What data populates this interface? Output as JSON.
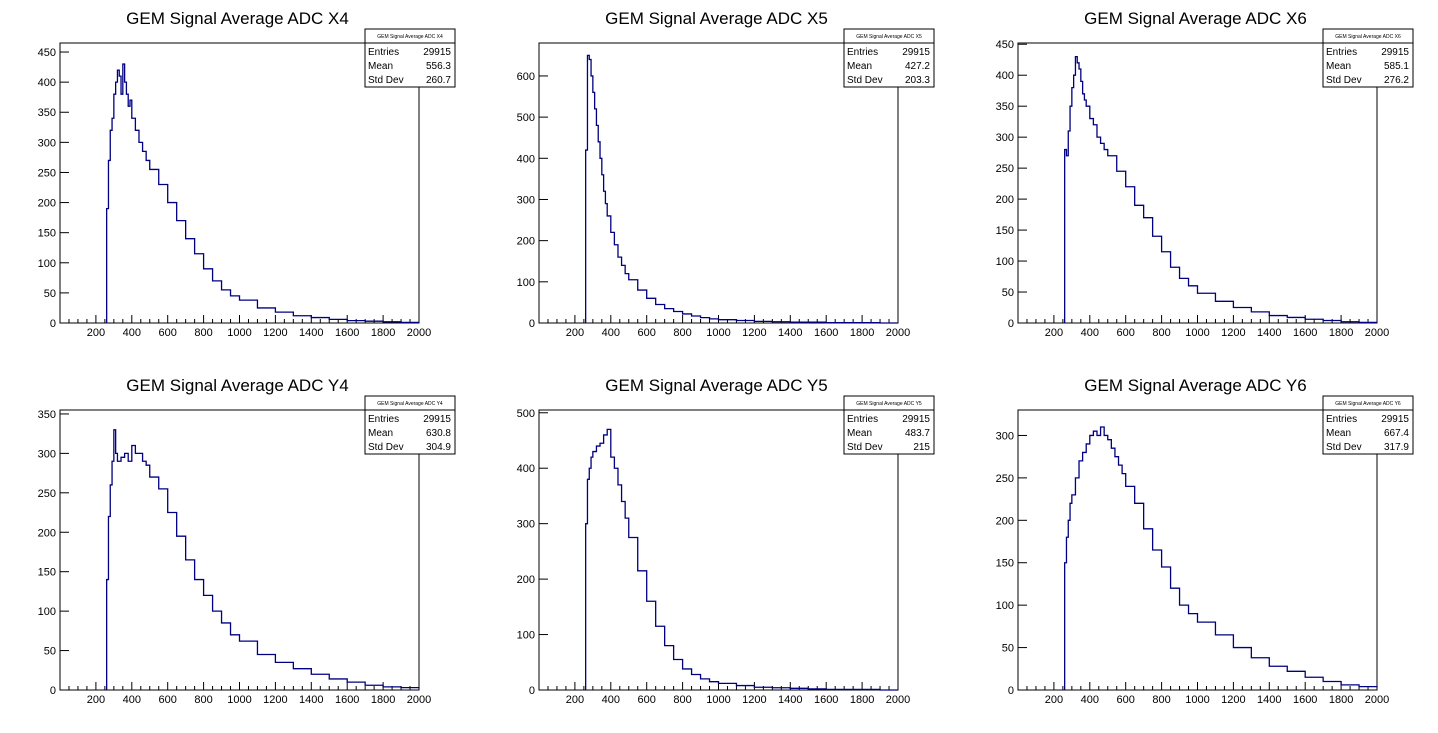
{
  "colors": {
    "histogram": "#000080",
    "axis": "#000000",
    "background": "#ffffff"
  },
  "chart_data": [
    {
      "type": "bar",
      "title": "GEM Signal Average ADC X4",
      "xlabel": "",
      "ylabel": "",
      "xlim": [
        0,
        2000
      ],
      "ylim": [
        0,
        465
      ],
      "xticks": [
        "200",
        "400",
        "600",
        "800",
        "1000",
        "1200",
        "1400",
        "1600",
        "1800",
        "2000"
      ],
      "yticks": [
        "0",
        "50",
        "100",
        "150",
        "200",
        "250",
        "300",
        "350",
        "400",
        "450"
      ],
      "stats": {
        "title": "GEM Signal Average ADC X4",
        "entries_label": "Entries",
        "entries": "29915",
        "mean_label": "Mean",
        "mean": "556.3",
        "std_label": "Std Dev",
        "std": "260.7"
      },
      "bin_width": 10,
      "x": [
        260,
        270,
        280,
        290,
        300,
        310,
        320,
        330,
        340,
        350,
        360,
        370,
        380,
        390,
        400,
        420,
        440,
        460,
        480,
        500,
        550,
        600,
        650,
        700,
        750,
        800,
        850,
        900,
        950,
        1000,
        1100,
        1200,
        1300,
        1400,
        1500,
        1600,
        1700,
        1800,
        1900,
        2000
      ],
      "values": [
        190,
        270,
        320,
        340,
        380,
        400,
        420,
        410,
        380,
        430,
        400,
        380,
        360,
        370,
        340,
        320,
        300,
        285,
        270,
        255,
        230,
        200,
        170,
        140,
        115,
        90,
        70,
        55,
        45,
        38,
        25,
        18,
        12,
        9,
        6,
        4,
        3,
        2,
        1,
        1
      ]
    },
    {
      "type": "bar",
      "title": "GEM Signal Average ADC X5",
      "xlabel": "",
      "ylabel": "",
      "xlim": [
        0,
        2000
      ],
      "ylim": [
        0,
        680
      ],
      "xticks": [
        "200",
        "400",
        "600",
        "800",
        "1000",
        "1200",
        "1400",
        "1600",
        "1800",
        "2000"
      ],
      "yticks": [
        "0",
        "100",
        "200",
        "300",
        "400",
        "500",
        "600"
      ],
      "stats": {
        "title": "GEM Signal Average ADC X5",
        "entries_label": "Entries",
        "entries": "29915",
        "mean_label": "Mean",
        "mean": "427.2",
        "std_label": "Std Dev",
        "std": "203.3"
      },
      "bin_width": 10,
      "x": [
        260,
        270,
        280,
        290,
        300,
        310,
        320,
        330,
        340,
        350,
        360,
        370,
        380,
        400,
        420,
        440,
        460,
        480,
        500,
        550,
        600,
        650,
        700,
        750,
        800,
        850,
        900,
        950,
        1000,
        1100,
        1200,
        1300,
        1400,
        1500,
        1600,
        1700,
        1800,
        1900,
        2000
      ],
      "values": [
        420,
        650,
        640,
        600,
        560,
        520,
        480,
        440,
        400,
        360,
        320,
        290,
        260,
        220,
        190,
        160,
        140,
        120,
        105,
        80,
        60,
        45,
        35,
        28,
        22,
        17,
        13,
        10,
        8,
        6,
        4,
        3,
        2,
        2,
        1,
        1,
        1,
        0,
        0
      ]
    },
    {
      "type": "bar",
      "title": "GEM Signal Average ADC X6",
      "xlabel": "",
      "ylabel": "",
      "xlim": [
        0,
        2000
      ],
      "ylim": [
        0,
        452
      ],
      "xticks": [
        "200",
        "400",
        "600",
        "800",
        "1000",
        "1200",
        "1400",
        "1600",
        "1800",
        "2000"
      ],
      "yticks": [
        "0",
        "50",
        "100",
        "150",
        "200",
        "250",
        "300",
        "350",
        "400",
        "450"
      ],
      "stats": {
        "title": "GEM Signal Average ADC X6",
        "entries_label": "Entries",
        "entries": "29915",
        "mean_label": "Mean",
        "mean": "585.1",
        "std_label": "Std Dev",
        "std": "276.2"
      },
      "bin_width": 10,
      "x": [
        260,
        270,
        280,
        290,
        300,
        310,
        320,
        330,
        340,
        350,
        360,
        370,
        380,
        400,
        420,
        440,
        460,
        480,
        500,
        550,
        600,
        650,
        700,
        750,
        800,
        850,
        900,
        950,
        1000,
        1100,
        1200,
        1300,
        1400,
        1500,
        1600,
        1700,
        1800,
        1900,
        2000
      ],
      "values": [
        280,
        270,
        310,
        350,
        380,
        400,
        430,
        420,
        410,
        390,
        370,
        360,
        350,
        330,
        320,
        300,
        290,
        280,
        270,
        245,
        220,
        190,
        170,
        140,
        115,
        90,
        72,
        60,
        48,
        35,
        25,
        18,
        12,
        9,
        6,
        4,
        2,
        1,
        1
      ]
    },
    {
      "type": "bar",
      "title": "GEM Signal Average ADC Y4",
      "xlabel": "",
      "ylabel": "",
      "xlim": [
        0,
        2000
      ],
      "ylim": [
        0,
        355
      ],
      "xticks": [
        "200",
        "400",
        "600",
        "800",
        "1000",
        "1200",
        "1400",
        "1600",
        "1800",
        "2000"
      ],
      "yticks": [
        "0",
        "50",
        "100",
        "150",
        "200",
        "250",
        "300",
        "350"
      ],
      "stats": {
        "title": "GEM Signal Average ADC Y4",
        "entries_label": "Entries",
        "entries": "29915",
        "mean_label": "Mean",
        "mean": "630.8",
        "std_label": "Std Dev",
        "std": "304.9"
      },
      "bin_width": 10,
      "x": [
        260,
        270,
        280,
        290,
        300,
        310,
        320,
        340,
        360,
        380,
        400,
        420,
        440,
        460,
        480,
        500,
        550,
        600,
        650,
        700,
        750,
        800,
        850,
        900,
        950,
        1000,
        1100,
        1200,
        1300,
        1400,
        1500,
        1600,
        1700,
        1800,
        1900,
        2000
      ],
      "values": [
        140,
        220,
        260,
        290,
        330,
        300,
        290,
        295,
        300,
        290,
        310,
        300,
        300,
        290,
        285,
        270,
        255,
        225,
        195,
        165,
        140,
        120,
        100,
        85,
        70,
        62,
        45,
        35,
        27,
        20,
        14,
        10,
        6,
        4,
        3,
        2
      ]
    },
    {
      "type": "bar",
      "title": "GEM Signal Average ADC Y5",
      "xlabel": "",
      "ylabel": "",
      "xlim": [
        0,
        2000
      ],
      "ylim": [
        0,
        505
      ],
      "xticks": [
        "200",
        "400",
        "600",
        "800",
        "1000",
        "1200",
        "1400",
        "1600",
        "1800",
        "2000"
      ],
      "yticks": [
        "0",
        "100",
        "200",
        "300",
        "400",
        "500"
      ],
      "stats": {
        "title": "GEM Signal Average ADC Y5",
        "entries_label": "Entries",
        "entries": "29915",
        "mean_label": "Mean",
        "mean": "483.7",
        "std_label": "Std Dev",
        "std": "215"
      },
      "bin_width": 10,
      "x": [
        260,
        270,
        280,
        290,
        300,
        320,
        340,
        360,
        380,
        400,
        420,
        440,
        460,
        480,
        500,
        550,
        600,
        650,
        700,
        750,
        800,
        850,
        900,
        950,
        1000,
        1100,
        1200,
        1300,
        1400,
        1500,
        1600,
        1700,
        1800,
        1900,
        2000
      ],
      "values": [
        300,
        380,
        400,
        420,
        430,
        440,
        445,
        460,
        470,
        420,
        400,
        370,
        340,
        310,
        275,
        215,
        160,
        115,
        80,
        55,
        38,
        28,
        20,
        15,
        12,
        8,
        5,
        4,
        3,
        2,
        1,
        1,
        1,
        0,
        0
      ]
    },
    {
      "type": "bar",
      "title": "GEM Signal Average ADC Y6",
      "xlabel": "",
      "ylabel": "",
      "xlim": [
        0,
        2000
      ],
      "ylim": [
        0,
        330
      ],
      "xticks": [
        "200",
        "400",
        "600",
        "800",
        "1000",
        "1200",
        "1400",
        "1600",
        "1800",
        "2000"
      ],
      "yticks": [
        "0",
        "50",
        "100",
        "150",
        "200",
        "250",
        "300"
      ],
      "stats": {
        "title": "GEM Signal Average ADC Y6",
        "entries_label": "Entries",
        "entries": "29915",
        "mean_label": "Mean",
        "mean": "667.4",
        "std_label": "Std Dev",
        "std": "317.9"
      },
      "bin_width": 10,
      "x": [
        260,
        270,
        280,
        290,
        300,
        320,
        340,
        360,
        380,
        400,
        420,
        440,
        460,
        480,
        500,
        520,
        540,
        560,
        580,
        600,
        650,
        700,
        750,
        800,
        850,
        900,
        950,
        1000,
        1100,
        1200,
        1300,
        1400,
        1500,
        1600,
        1700,
        1800,
        1900,
        2000
      ],
      "values": [
        150,
        180,
        200,
        220,
        230,
        250,
        270,
        280,
        290,
        300,
        305,
        300,
        310,
        300,
        295,
        285,
        275,
        265,
        255,
        240,
        220,
        190,
        165,
        145,
        120,
        100,
        90,
        80,
        65,
        50,
        38,
        28,
        22,
        15,
        10,
        6,
        4,
        3
      ]
    }
  ]
}
